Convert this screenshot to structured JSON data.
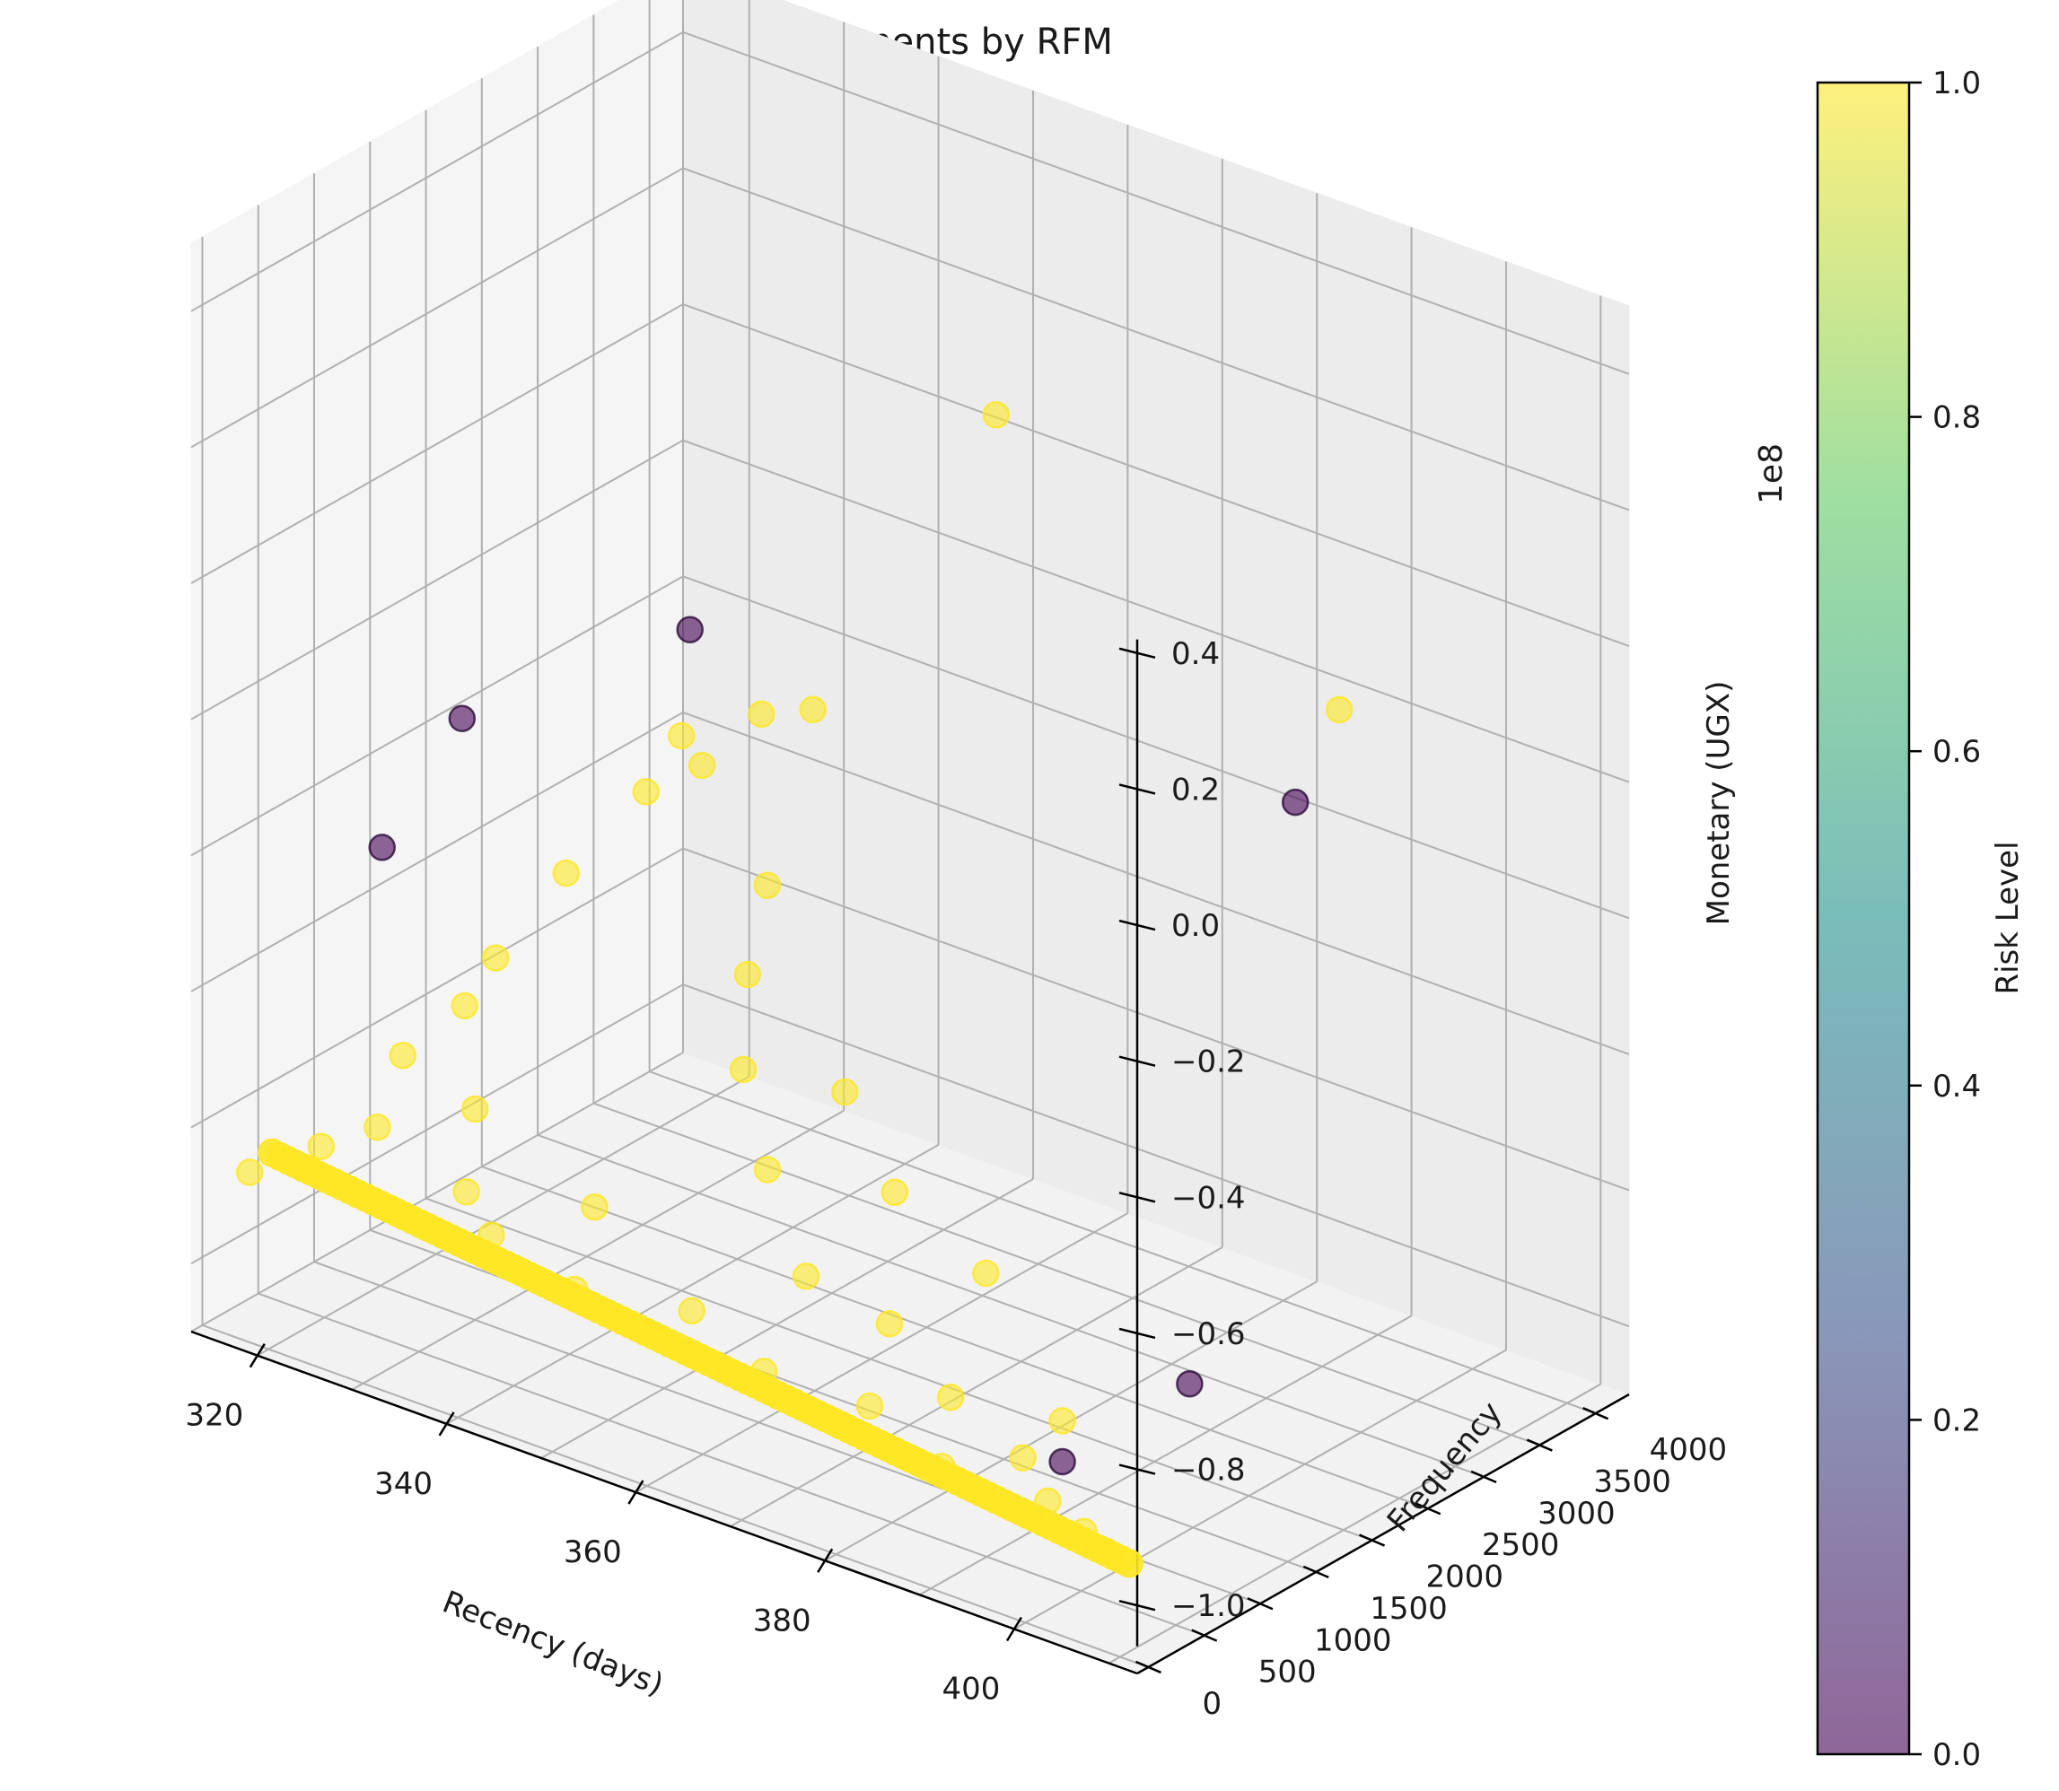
{
  "chart_data": {
    "type": "scatter",
    "title": "Customer Segments by RFM",
    "xlabel": "Recency (days)",
    "ylabel": "Frequency",
    "zlabel": "Monetary (UGX)",
    "z_offset_label": "1e8",
    "xlim": [
      313,
      413
    ],
    "ylim": [
      -100,
      4300
    ],
    "zlim": [
      -1.1,
      0.5
    ],
    "x_ticks": [
      320,
      340,
      360,
      380,
      400
    ],
    "y_ticks": [
      0,
      500,
      1000,
      1500,
      2000,
      2500,
      3000,
      3500,
      4000
    ],
    "z_ticks": [
      -1.0,
      -0.8,
      -0.6,
      -0.4,
      -0.2,
      0.0,
      0.2,
      0.4
    ],
    "x_tick_labels": [
      "320",
      "340",
      "360",
      "380",
      "400"
    ],
    "y_tick_labels": [
      "0",
      "500",
      "1000",
      "1500",
      "2000",
      "2500",
      "3000",
      "3500",
      "4000"
    ],
    "z_tick_labels": [
      "−1.0",
      "−0.8",
      "−0.6",
      "−0.4",
      "−0.2",
      "0.0",
      "0.2",
      "0.4"
    ],
    "colorbar": {
      "label": "Risk Level",
      "range": [
        0,
        1
      ],
      "ticks": [
        0.0,
        0.2,
        0.4,
        0.6,
        0.8,
        1.0
      ],
      "tick_labels": [
        "0.0",
        "0.2",
        "0.4",
        "0.6",
        "0.8",
        "1.0"
      ],
      "colors": [
        "#440154",
        "#3b528b",
        "#21918c",
        "#5ec962",
        "#fde725"
      ]
    },
    "grid": true,
    "marker_alpha": 0.6,
    "series": [
      {
        "risk": 1,
        "color": "#fde725",
        "points": [
          {
            "x": 318,
            "y": 0,
            "z": -0.85
          },
          {
            "x": 322,
            "y": 300,
            "z": -0.82
          },
          {
            "x": 325,
            "y": 550,
            "z": -0.8
          },
          {
            "x": 320,
            "y": 1200,
            "z": -0.78
          },
          {
            "x": 318,
            "y": 2200,
            "z": -0.74
          },
          {
            "x": 316,
            "y": 3000,
            "z": -0.7
          },
          {
            "x": 315,
            "y": 3800,
            "z": -0.66
          },
          {
            "x": 314,
            "y": 4200,
            "z": -0.62
          },
          {
            "x": 330,
            "y": 1000,
            "z": -0.79
          },
          {
            "x": 335,
            "y": 500,
            "z": -0.84
          },
          {
            "x": 340,
            "y": 300,
            "z": -0.86
          },
          {
            "x": 345,
            "y": 800,
            "z": -0.84
          },
          {
            "x": 350,
            "y": 200,
            "z": -0.88
          },
          {
            "x": 355,
            "y": 1500,
            "z": -0.8
          },
          {
            "x": 360,
            "y": 400,
            "z": -0.88
          },
          {
            "x": 365,
            "y": 1000,
            "z": -0.86
          },
          {
            "x": 370,
            "y": 200,
            "z": -0.9
          },
          {
            "x": 375,
            "y": 900,
            "z": -0.87
          },
          {
            "x": 380,
            "y": 300,
            "z": -0.91
          },
          {
            "x": 385,
            "y": 600,
            "z": -0.9
          },
          {
            "x": 390,
            "y": 100,
            "z": -0.93
          },
          {
            "x": 395,
            "y": 400,
            "z": -0.92
          },
          {
            "x": 400,
            "y": 200,
            "z": -0.94
          },
          {
            "x": 405,
            "y": 100,
            "z": -0.95
          },
          {
            "x": 408,
            "y": 50,
            "z": -0.96
          },
          {
            "x": 342,
            "y": 2600,
            "z": -0.55
          },
          {
            "x": 328,
            "y": 3200,
            "z": -0.5
          },
          {
            "x": 335,
            "y": 3600,
            "z": -0.42
          },
          {
            "x": 347,
            "y": 2000,
            "z": -0.6
          },
          {
            "x": 362,
            "y": 1600,
            "z": -0.66
          },
          {
            "x": 356,
            "y": 1200,
            "z": -0.62
          },
          {
            "x": 372,
            "y": 1200,
            "z": -0.72
          },
          {
            "x": 384,
            "y": 1000,
            "z": -0.76
          },
          {
            "x": 398,
            "y": 500,
            "z": -0.86
          },
          {
            "x": 352,
            "y": 3800,
            "z": 0.08
          },
          {
            "x": 393,
            "y": 3400,
            "z": -0.11
          },
          {
            "x": 326,
            "y": 3900,
            "z": -0.5
          },
          {
            "x": 323,
            "y": 1500,
            "z": -0.72
          }
        ]
      },
      {
        "risk": 0,
        "color": "#440154",
        "points": [
          {
            "x": 318,
            "y": 1900,
            "z": -0.36
          },
          {
            "x": 319,
            "y": 1100,
            "z": -0.47
          },
          {
            "x": 335,
            "y": 2500,
            "z": -0.2
          },
          {
            "x": 386,
            "y": 3600,
            "z": -0.3
          },
          {
            "x": 398,
            "y": 500,
            "z": -0.92
          },
          {
            "x": 402,
            "y": 1300,
            "z": -0.86
          }
        ]
      }
    ]
  }
}
